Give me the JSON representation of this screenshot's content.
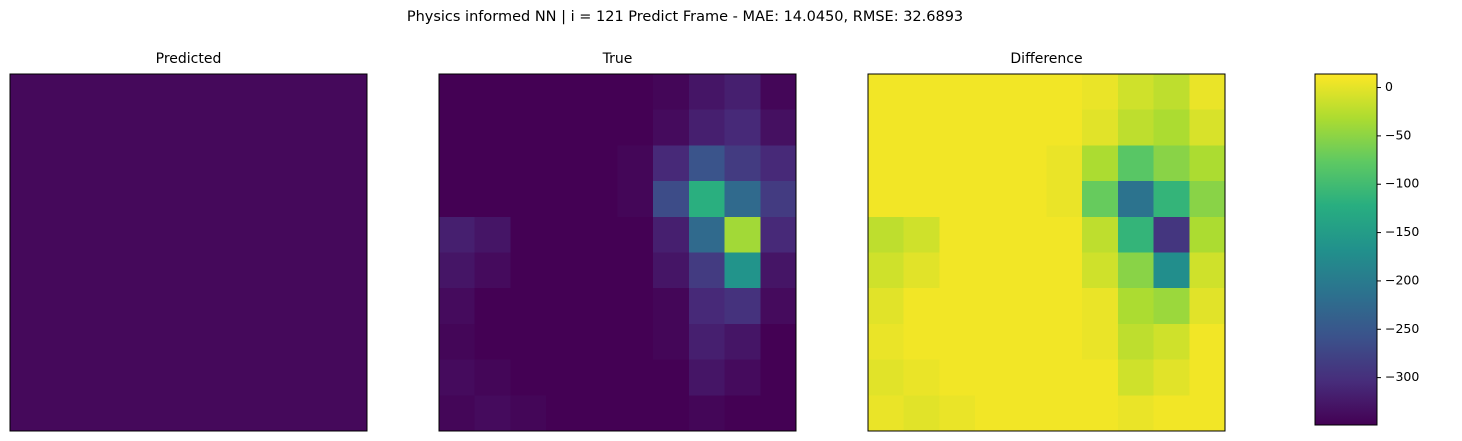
{
  "title": "Physics informed NN | i = 121 Predict Frame - MAE: 14.0450, RMSE: 32.6893",
  "chart_data": [
    {
      "type": "heatmap",
      "title": "Predicted",
      "clim": [
        0,
        350
      ],
      "colormap": "viridis",
      "values": [
        [
          8,
          8,
          8,
          8,
          8,
          8,
          8,
          8,
          8,
          8
        ],
        [
          8,
          8,
          8,
          8,
          8,
          8,
          8,
          8,
          8,
          8
        ],
        [
          8,
          8,
          8,
          8,
          8,
          8,
          8,
          8,
          8,
          8
        ],
        [
          8,
          8,
          8,
          8,
          8,
          8,
          8,
          8,
          8,
          8
        ],
        [
          8,
          8,
          8,
          8,
          8,
          8,
          8,
          8,
          8,
          8
        ],
        [
          8,
          8,
          8,
          8,
          8,
          8,
          8,
          8,
          8,
          8
        ],
        [
          8,
          8,
          8,
          8,
          8,
          8,
          8,
          8,
          8,
          8
        ],
        [
          8,
          8,
          8,
          8,
          8,
          8,
          8,
          8,
          8,
          8
        ],
        [
          8,
          8,
          8,
          8,
          8,
          8,
          8,
          8,
          8,
          8
        ],
        [
          8,
          8,
          8,
          8,
          8,
          8,
          8,
          8,
          8,
          8
        ]
      ]
    },
    {
      "type": "heatmap",
      "title": "True",
      "clim": [
        0,
        350
      ],
      "colormap": "viridis",
      "values": [
        [
          0,
          0,
          0,
          0,
          0,
          0,
          5,
          20,
          30,
          5
        ],
        [
          0,
          0,
          0,
          0,
          0,
          0,
          10,
          30,
          40,
          15
        ],
        [
          0,
          0,
          0,
          0,
          0,
          5,
          40,
          90,
          60,
          40
        ],
        [
          0,
          0,
          0,
          0,
          0,
          5,
          80,
          220,
          120,
          60
        ],
        [
          30,
          20,
          0,
          0,
          0,
          0,
          30,
          120,
          300,
          40
        ],
        [
          20,
          10,
          0,
          0,
          0,
          0,
          20,
          60,
          180,
          20
        ],
        [
          10,
          0,
          0,
          0,
          0,
          0,
          5,
          40,
          50,
          10
        ],
        [
          5,
          0,
          0,
          0,
          0,
          0,
          5,
          30,
          20,
          0
        ],
        [
          10,
          5,
          0,
          0,
          0,
          0,
          0,
          20,
          10,
          0
        ],
        [
          5,
          10,
          5,
          0,
          0,
          0,
          0,
          5,
          0,
          0
        ]
      ]
    },
    {
      "type": "heatmap",
      "title": "Difference",
      "clim": [
        -349,
        14
      ],
      "colormap": "viridis",
      "values": [
        [
          8,
          8,
          8,
          8,
          8,
          8,
          3,
          -12,
          -22,
          3
        ],
        [
          8,
          8,
          8,
          8,
          8,
          8,
          -2,
          -22,
          -32,
          -7
        ],
        [
          8,
          8,
          8,
          8,
          8,
          3,
          -32,
          -82,
          -52,
          -32
        ],
        [
          8,
          8,
          8,
          8,
          8,
          3,
          -72,
          -212,
          -112,
          -52
        ],
        [
          -22,
          -12,
          8,
          8,
          8,
          8,
          -22,
          -112,
          -292,
          -32
        ],
        [
          -12,
          -2,
          8,
          8,
          8,
          8,
          -12,
          -52,
          -172,
          -12
        ],
        [
          -2,
          8,
          8,
          8,
          8,
          8,
          3,
          -32,
          -42,
          -2
        ],
        [
          3,
          8,
          8,
          8,
          8,
          8,
          3,
          -22,
          -12,
          8
        ],
        [
          -2,
          3,
          8,
          8,
          8,
          8,
          8,
          -12,
          -2,
          8
        ],
        [
          3,
          -2,
          3,
          8,
          8,
          8,
          8,
          3,
          8,
          8
        ]
      ],
      "colorbar": {
        "ylim": [
          -349,
          14
        ],
        "yticks": [
          {
            "value": -300,
            "label": "−300"
          },
          {
            "value": -250,
            "label": "−250"
          },
          {
            "value": -200,
            "label": "−200"
          },
          {
            "value": -150,
            "label": "−150"
          },
          {
            "value": -100,
            "label": "−100"
          },
          {
            "value": -50,
            "label": "−50"
          },
          0
        ]
      }
    }
  ]
}
